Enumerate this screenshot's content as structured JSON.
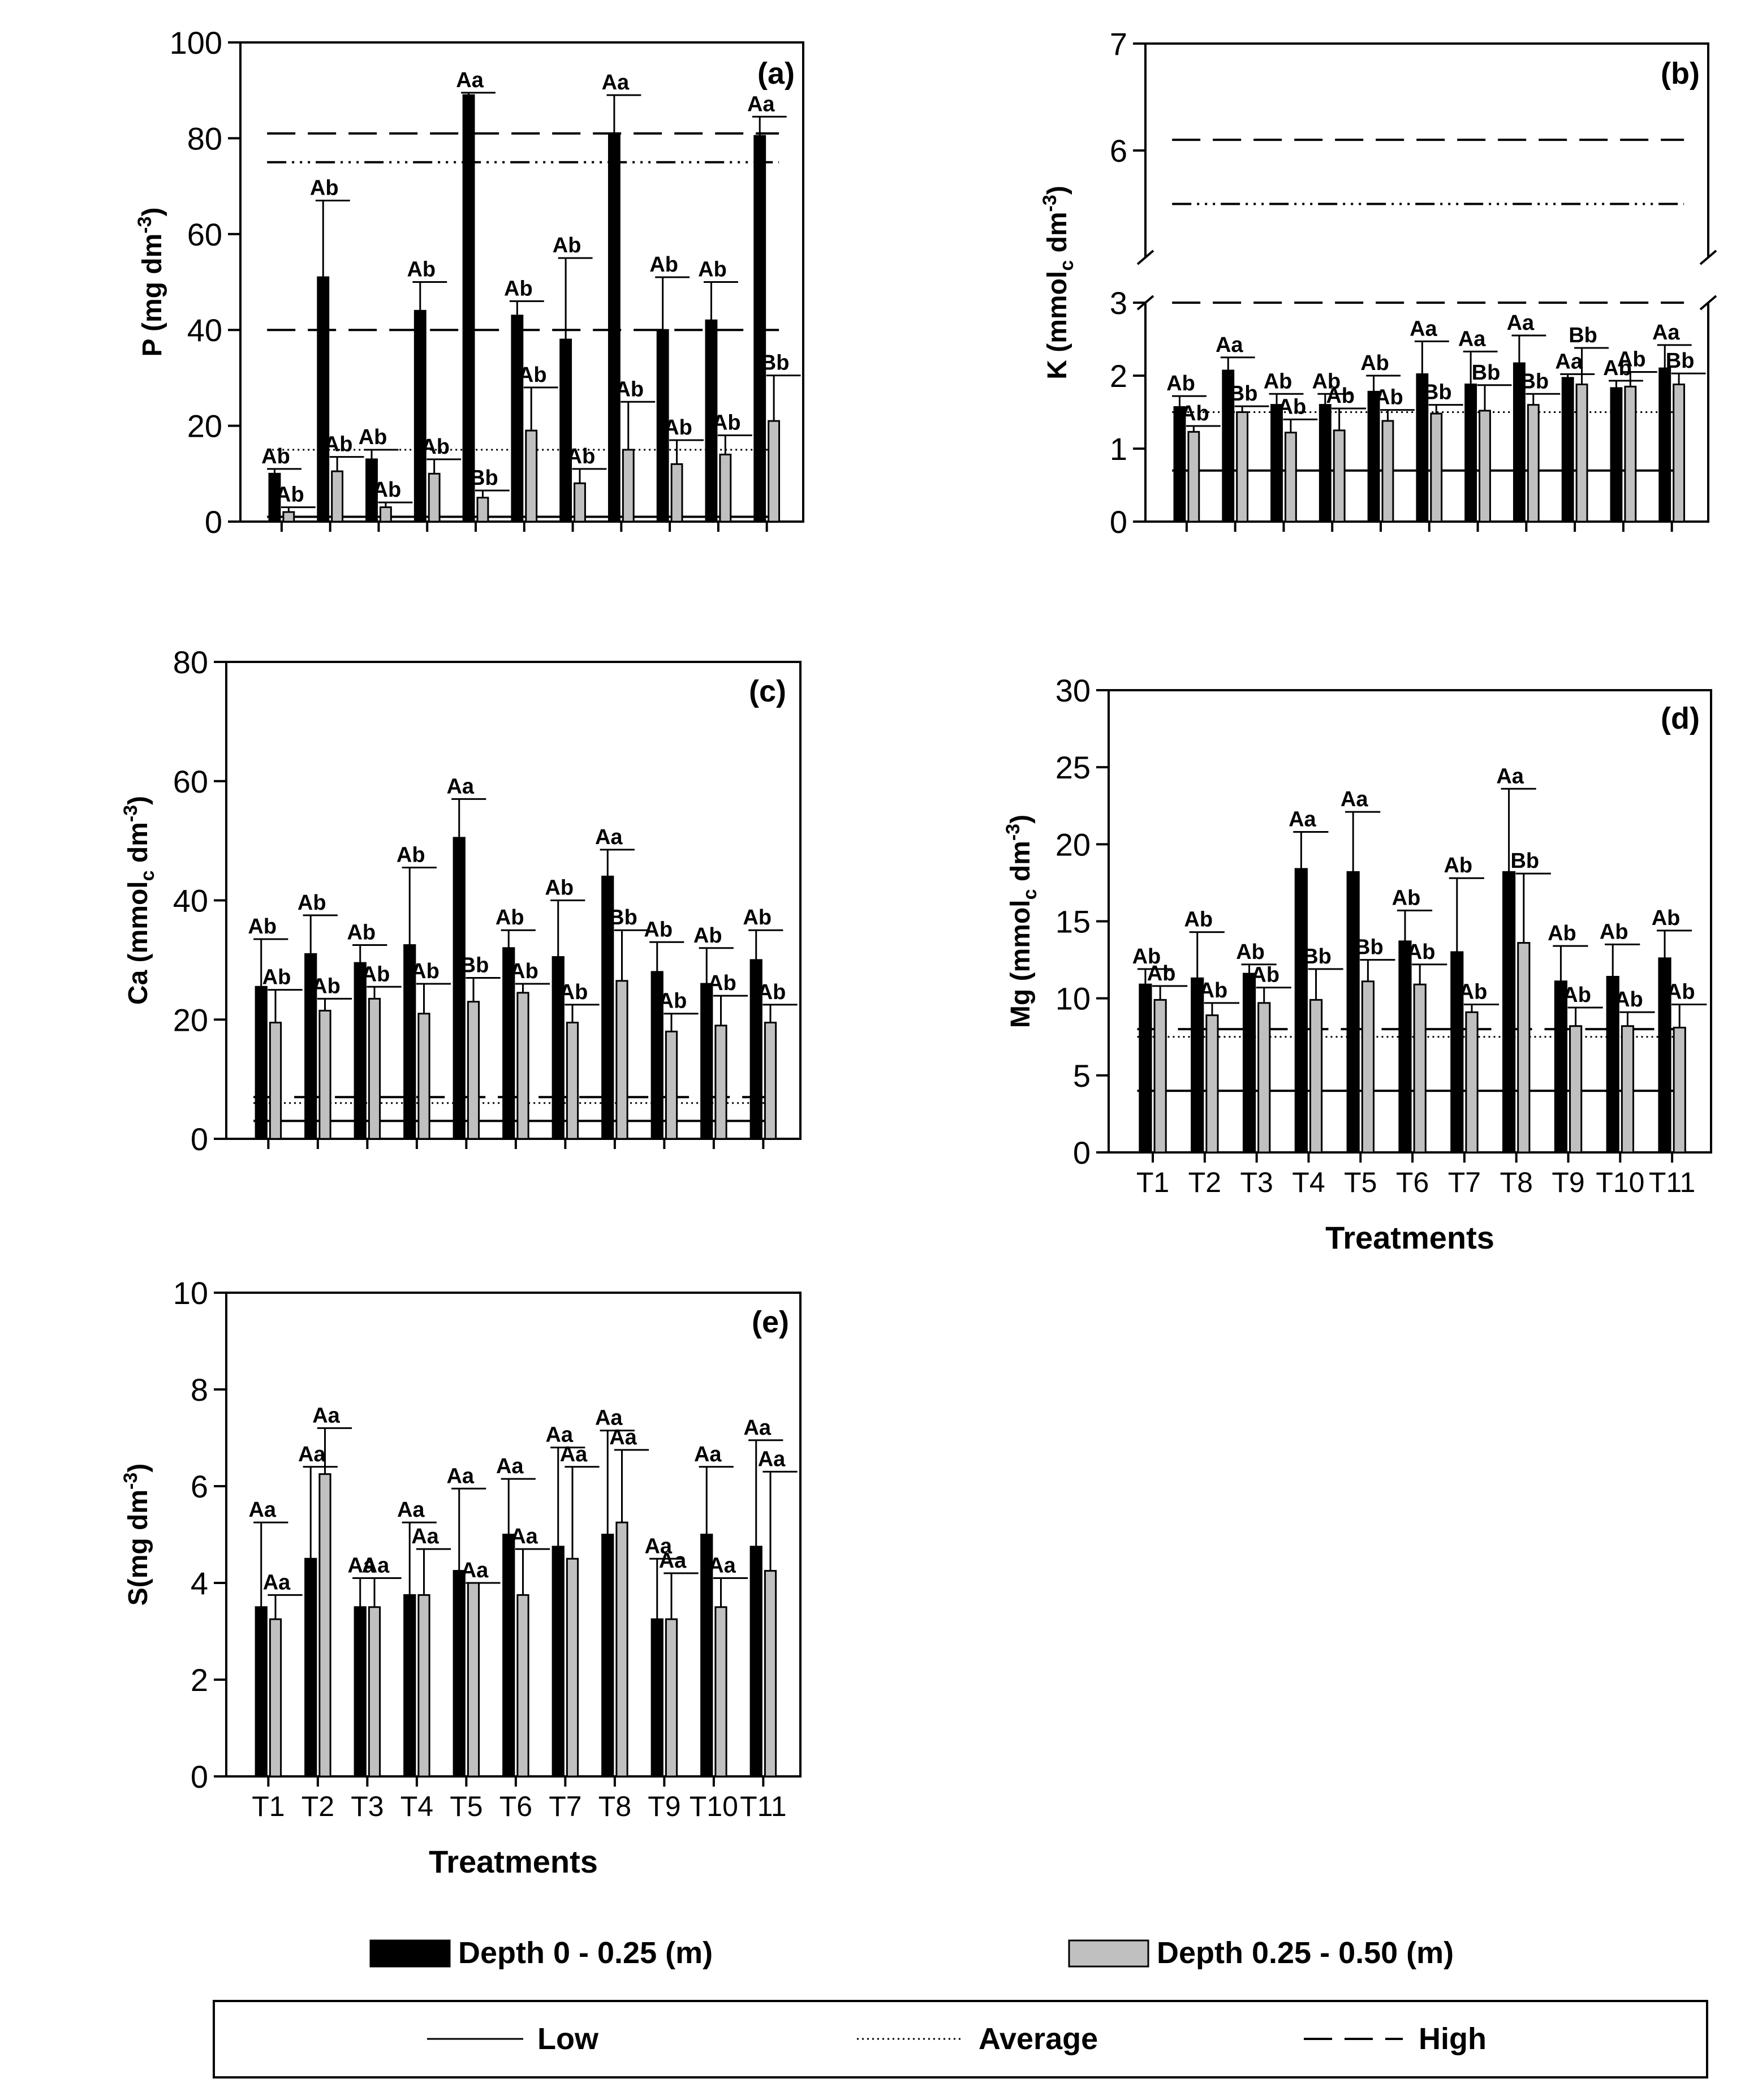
{
  "colors": {
    "depth1": "#000000",
    "depth2": "#c0c0c0",
    "axis": "#000000",
    "background": "#ffffff"
  },
  "treatments": [
    "T1",
    "T2",
    "T3",
    "T4",
    "T5",
    "T6",
    "T7",
    "T8",
    "T9",
    "T10",
    "T11"
  ],
  "chart_data": [
    {
      "id": "a",
      "type": "bar",
      "panel_label": "(a)",
      "ylabel": {
        "main": "P (mg dm",
        "sup": "-3",
        "tail": ")"
      },
      "xlabel": "",
      "show_x_ticks": false,
      "ylim": [
        0,
        100
      ],
      "yticks": [
        "0",
        "20",
        "40",
        "60",
        "80",
        "100"
      ],
      "categories": [
        "T1",
        "T2",
        "T3",
        "T4",
        "T5",
        "T6",
        "T7",
        "T8",
        "T9",
        "T10",
        "T11"
      ],
      "series": [
        {
          "name": "Depth 0 - 0.25 (m)",
          "values": [
            10,
            51,
            13,
            44,
            89,
            43,
            38,
            81,
            40,
            42,
            80.5
          ],
          "errors": [
            1,
            16,
            2,
            6,
            0.5,
            3,
            17,
            8,
            11,
            8,
            4
          ],
          "letters": [
            "Ab",
            "Ab",
            "Ab",
            "Ab",
            "Aa",
            "Ab",
            "Ab",
            "Aa",
            "Ab",
            "Ab",
            "Aa"
          ]
        },
        {
          "name": "Depth 0.25 - 0.50 (m)",
          "values": [
            2,
            10.5,
            3,
            10,
            5,
            19,
            8,
            15,
            12,
            14,
            21
          ],
          "errors": [
            1,
            3,
            1,
            3,
            1.5,
            9,
            3,
            10,
            5,
            4,
            9.5
          ],
          "letters": [
            "Ab",
            "Ab",
            "Ab",
            "Ab",
            "Bb",
            "Ab",
            "Ab",
            "Ab",
            "Ab",
            "Ab",
            "Bb"
          ]
        }
      ],
      "reference_lines": [
        {
          "type": "low",
          "value": 1
        },
        {
          "type": "average",
          "value": 15
        },
        {
          "type": "high",
          "value": 40
        },
        {
          "type": "high",
          "value": 81
        },
        {
          "type": "dashdot",
          "value": 75
        }
      ]
    },
    {
      "id": "b",
      "type": "bar",
      "panel_label": "(b)",
      "ylabel": {
        "main": "K (mmol",
        "sub": "c",
        "mid": " dm",
        "sup": "-3",
        "tail": ")"
      },
      "xlabel": "",
      "show_x_ticks": false,
      "broken_axis": true,
      "ylim": [
        0,
        3
      ],
      "upper_ylim": [
        5,
        7
      ],
      "yticks": [
        "0",
        "1",
        "2",
        "3"
      ],
      "upper_yticks": [
        "6",
        "7"
      ],
      "categories": [
        "T1",
        "T2",
        "T3",
        "T4",
        "T5",
        "T6",
        "T7",
        "T8",
        "T9",
        "T10",
        "T11"
      ],
      "series": [
        {
          "name": "Depth 0 - 0.25 (m)",
          "values": [
            1.57,
            2.07,
            1.6,
            1.6,
            1.78,
            2.02,
            1.88,
            2.17,
            1.97,
            1.83,
            2.1
          ],
          "errors": [
            0.15,
            0.18,
            0.15,
            0.15,
            0.22,
            0.45,
            0.45,
            0.38,
            0.05,
            0.1,
            0.32
          ],
          "letters": [
            "Ab",
            "Aa",
            "Ab",
            "Ab",
            "Ab",
            "Aa",
            "Aa",
            "Aa",
            "Aa",
            "Ab",
            "Aa"
          ]
        },
        {
          "name": "Depth 0.25 - 0.50 (m)",
          "values": [
            1.23,
            1.5,
            1.22,
            1.25,
            1.38,
            1.48,
            1.52,
            1.6,
            1.88,
            1.85,
            1.88
          ],
          "errors": [
            0.08,
            0.08,
            0.18,
            0.3,
            0.15,
            0.12,
            0.35,
            0.15,
            0.5,
            0.2,
            0.15
          ],
          "letters": [
            "Ab",
            "Bb",
            "Ab",
            "Ab",
            "Ab",
            "Bb",
            "Bb",
            "Bb",
            "Bb",
            "Ab",
            "Bb"
          ]
        }
      ],
      "reference_lines": [
        {
          "type": "low",
          "value": 0.7
        },
        {
          "type": "average",
          "value": 1.5
        },
        {
          "type": "high",
          "value": 3.0
        }
      ],
      "upper_reference_lines": [
        {
          "type": "high",
          "value": 6.1
        },
        {
          "type": "dashdot",
          "value": 5.5
        }
      ]
    },
    {
      "id": "c",
      "type": "bar",
      "panel_label": "(c)",
      "ylabel": {
        "main": "Ca (mmol",
        "sub": "c",
        "mid": " dm",
        "sup": "-3",
        "tail": ")"
      },
      "xlabel": "",
      "show_x_ticks": false,
      "ylim": [
        0,
        80
      ],
      "yticks": [
        "0",
        "20",
        "40",
        "60",
        "80"
      ],
      "categories": [
        "T1",
        "T2",
        "T3",
        "T4",
        "T5",
        "T6",
        "T7",
        "T8",
        "T9",
        "T10",
        "T11"
      ],
      "series": [
        {
          "name": "Depth 0 - 0.25 (m)",
          "values": [
            25.5,
            31,
            29.5,
            32.5,
            50.5,
            32,
            30.5,
            44,
            28,
            26,
            30
          ],
          "errors": [
            8,
            6.5,
            3,
            13,
            6.5,
            3,
            9.5,
            4.5,
            5,
            6,
            5
          ],
          "letters": [
            "Ab",
            "Ab",
            "Ab",
            "Ab",
            "Aa",
            "Ab",
            "Ab",
            "Aa",
            "Ab",
            "Ab",
            "Ab"
          ]
        },
        {
          "name": "Depth 0.25 - 0.50 (m)",
          "values": [
            19.5,
            21.5,
            23.5,
            21,
            23,
            24.5,
            19.5,
            26.5,
            18,
            19,
            19.5
          ],
          "errors": [
            5.5,
            2,
            2,
            5,
            4,
            1.5,
            3,
            8.5,
            3,
            5,
            3
          ],
          "letters": [
            "Ab",
            "Ab",
            "Ab",
            "Ab",
            "Bb",
            "Ab",
            "Ab",
            "Bb",
            "Ab",
            "Ab",
            "Ab"
          ]
        }
      ],
      "reference_lines": [
        {
          "type": "low",
          "value": 3
        },
        {
          "type": "average",
          "value": 6
        },
        {
          "type": "high",
          "value": 7
        }
      ]
    },
    {
      "id": "d",
      "type": "bar",
      "panel_label": "(d)",
      "ylabel": {
        "main": "Mg (mmol",
        "sub": "c",
        "mid": " dm",
        "sup": "-3",
        "tail": ")"
      },
      "xlabel": "Treatments",
      "show_x_ticks": true,
      "ylim": [
        0,
        30
      ],
      "yticks": [
        "0",
        "5",
        "10",
        "15",
        "20",
        "25",
        "30"
      ],
      "categories": [
        "T1",
        "T2",
        "T3",
        "T4",
        "T5",
        "T6",
        "T7",
        "T8",
        "T9",
        "T10",
        "T11"
      ],
      "series": [
        {
          "name": "Depth 0 - 0.25 (m)",
          "values": [
            10.9,
            11.3,
            11.6,
            18.4,
            18.2,
            13.7,
            13,
            18.2,
            11.1,
            11.4,
            12.6
          ],
          "errors": [
            1,
            3,
            0.6,
            2.4,
            3.9,
            2,
            4.8,
            5.4,
            2.3,
            2.1,
            1.8
          ],
          "letters": [
            "Ab",
            "Ab",
            "Ab",
            "Aa",
            "Aa",
            "Ab",
            "Ab",
            "Aa",
            "Ab",
            "Ab",
            "Ab"
          ]
        },
        {
          "name": "Depth 0.25 - 0.50 (m)",
          "values": [
            9.9,
            8.9,
            9.7,
            9.9,
            11.1,
            10.9,
            9.1,
            13.6,
            8.2,
            8.2,
            8.1
          ],
          "errors": [
            0.9,
            0.8,
            1,
            2,
            1.4,
            1.3,
            0.5,
            4.5,
            1.2,
            0.9,
            1.5
          ],
          "letters": [
            "Ab",
            "Ab",
            "Ab",
            "Bb",
            "Bb",
            "Ab",
            "Ab",
            "Bb",
            "Ab",
            "Ab",
            "Ab"
          ]
        }
      ],
      "reference_lines": [
        {
          "type": "low",
          "value": 4
        },
        {
          "type": "average",
          "value": 7.5
        },
        {
          "type": "high",
          "value": 8
        }
      ]
    },
    {
      "id": "e",
      "type": "bar",
      "panel_label": "(e)",
      "ylabel": {
        "main": "S(mg dm",
        "sup": "-3",
        "tail": ")"
      },
      "xlabel": "Treatments",
      "show_x_ticks": true,
      "ylim": [
        0,
        10
      ],
      "yticks": [
        "0",
        "2",
        "4",
        "6",
        "8",
        "10"
      ],
      "categories": [
        "T1",
        "T2",
        "T3",
        "T4",
        "T5",
        "T6",
        "T7",
        "T8",
        "T9",
        "T10",
        "T11"
      ],
      "series": [
        {
          "name": "Depth 0 - 0.25 (m)",
          "values": [
            3.5,
            4.5,
            3.5,
            3.75,
            4.25,
            5,
            4.75,
            5,
            3.25,
            5,
            4.75
          ],
          "errors": [
            1.75,
            1.9,
            0.6,
            1.5,
            1.7,
            1.15,
            2.05,
            2.15,
            1.25,
            1.4,
            2.2
          ],
          "letters": [
            "Aa",
            "Aa",
            "Aa",
            "Aa",
            "Aa",
            "Aa",
            "Aa",
            "Aa",
            "Aa",
            "Aa",
            "Aa"
          ]
        },
        {
          "name": "Depth 0.25 - 0.50 (m)",
          "values": [
            3.25,
            6.25,
            3.5,
            3.75,
            4,
            3.75,
            4.5,
            5.25,
            3.25,
            3.5,
            4.25
          ],
          "errors": [
            0.5,
            0.95,
            0.6,
            0.95,
            0,
            0.95,
            1.9,
            1.5,
            0.95,
            0.6,
            2.05
          ],
          "letters": [
            "Aa",
            "Aa",
            "Aa",
            "Aa",
            "Aa",
            "Aa",
            "Aa",
            "Aa",
            "Aa",
            "Aa",
            "Aa"
          ]
        }
      ],
      "reference_lines": []
    }
  ],
  "legend": {
    "depth1_label": "Depth 0 - 0.25 (m)",
    "depth2_label": "Depth 0.25 - 0.50 (m)",
    "low_label": "Low",
    "average_label": "Average",
    "high_label": "High"
  }
}
